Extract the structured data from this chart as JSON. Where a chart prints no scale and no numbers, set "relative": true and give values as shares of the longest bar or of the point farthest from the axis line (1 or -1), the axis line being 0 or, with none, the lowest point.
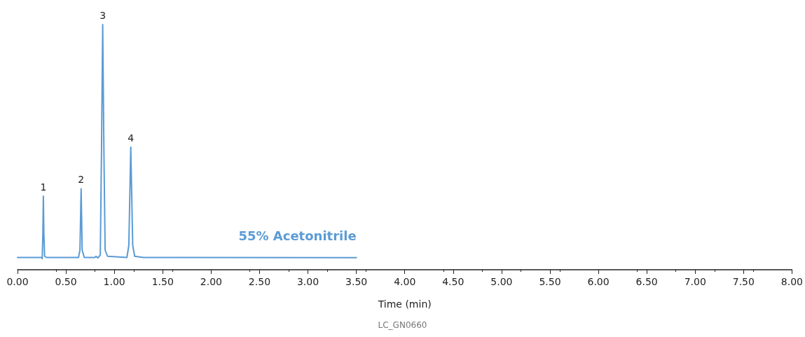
{
  "chart_data": {
    "type": "line",
    "relative": true,
    "xlabel": "Time (min)",
    "xlim": [
      0,
      8
    ],
    "xticks": [
      {
        "value": 0,
        "label": "0.00"
      },
      {
        "value": 0.5,
        "label": "0.50"
      },
      {
        "value": 1,
        "label": "1.00"
      },
      {
        "value": 1.5,
        "label": "1.50"
      },
      {
        "value": 2,
        "label": "2.00"
      },
      {
        "value": 2.5,
        "label": "2.50"
      },
      {
        "value": 3,
        "label": "3.00"
      },
      {
        "value": 3.5,
        "label": "3.50"
      },
      {
        "value": 4,
        "label": "4.00"
      },
      {
        "value": 4.5,
        "label": "4.50"
      },
      {
        "value": 5,
        "label": "5.00"
      },
      {
        "value": 5.5,
        "label": "5.50"
      },
      {
        "value": 6,
        "label": "6.00"
      },
      {
        "value": 6.5,
        "label": "6.50"
      },
      {
        "value": 7,
        "label": "7.00"
      },
      {
        "value": 7.5,
        "label": "7.50"
      },
      {
        "value": 8,
        "label": "8.00"
      }
    ],
    "tick_labels": "x",
    "grid": false,
    "marker": "none",
    "line_style": "solid",
    "series": [
      {
        "color": "#5b9bd5",
        "x": [
          0,
          0.25,
          0.255,
          0.262,
          0.267,
          0.272,
          0.28,
          0.3,
          0.63,
          0.645,
          0.657,
          0.668,
          0.69,
          0.8,
          0.81,
          0.83,
          0.855,
          0.868,
          0.88,
          0.892,
          0.905,
          0.93,
          1.13,
          1.15,
          1.17,
          1.19,
          1.21,
          1.3,
          3.5
        ],
        "values": [
          0.05,
          0.05,
          0.045,
          0.15,
          0.3,
          0.15,
          0.055,
          0.05,
          0.05,
          0.08,
          0.33,
          0.08,
          0.05,
          0.05,
          0.055,
          0.048,
          0.06,
          0.5,
          1.0,
          0.5,
          0.08,
          0.055,
          0.05,
          0.1,
          0.5,
          0.1,
          0.055,
          0.05,
          0.049
        ]
      }
    ],
    "annotations": [
      {
        "text": "1",
        "x": 0.267,
        "y": 0.3
      },
      {
        "text": "2",
        "x": 0.657,
        "y": 0.33
      },
      {
        "text": "3",
        "x": 0.88,
        "y": 1.0
      },
      {
        "text": "4",
        "x": 1.17,
        "y": 0.5
      },
      "55% Acetonitrile",
      "LC_GN0660"
    ]
  }
}
